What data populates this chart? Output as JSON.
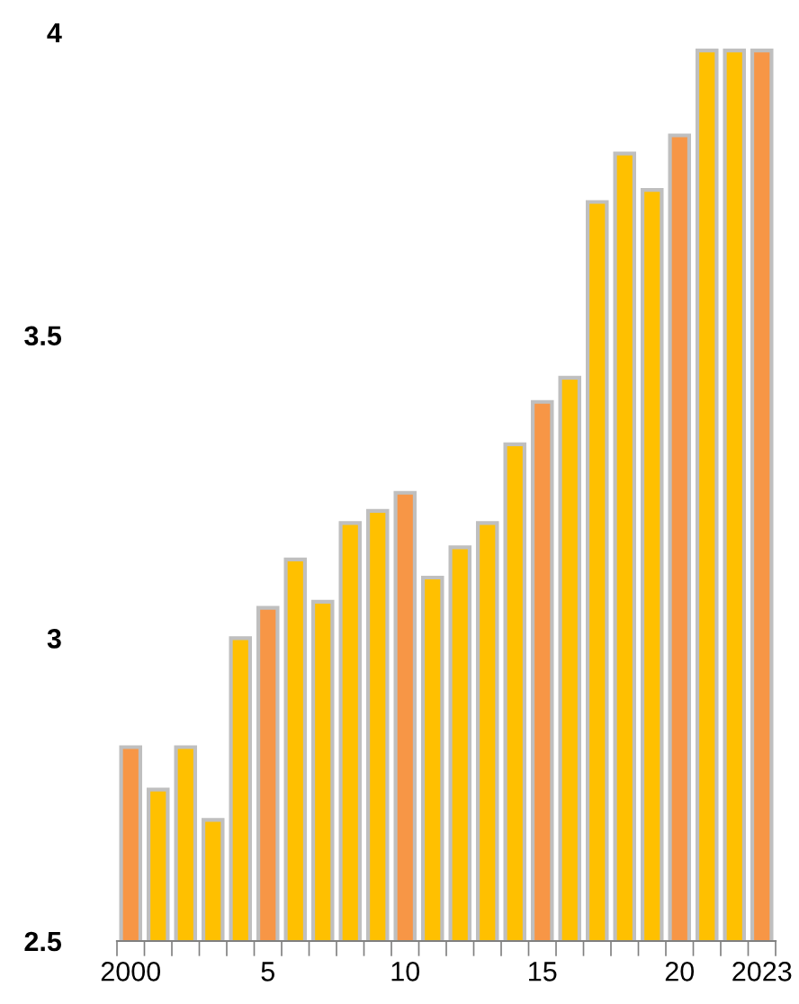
{
  "chart_data": {
    "type": "bar",
    "categories": [
      "2000",
      null,
      null,
      null,
      null,
      "5",
      null,
      null,
      null,
      null,
      "10",
      null,
      null,
      null,
      null,
      "15",
      null,
      null,
      null,
      null,
      "20",
      null,
      null,
      "2023"
    ],
    "values": [
      2.82,
      2.75,
      2.82,
      2.7,
      3.0,
      3.05,
      3.13,
      3.06,
      3.19,
      3.21,
      3.24,
      3.1,
      3.15,
      3.19,
      3.32,
      3.39,
      3.43,
      3.72,
      3.8,
      3.74,
      3.83,
      3.97,
      3.97,
      3.97
    ],
    "colors": [
      "#f79646",
      "#ffc000",
      "#ffc000",
      "#ffc000",
      "#ffc000",
      "#f79646",
      "#ffc000",
      "#ffc000",
      "#ffc000",
      "#ffc000",
      "#f79646",
      "#ffc000",
      "#ffc000",
      "#ffc000",
      "#ffc000",
      "#f79646",
      "#ffc000",
      "#ffc000",
      "#ffc000",
      "#ffc000",
      "#f79646",
      "#ffc000",
      "#ffc000",
      "#f79646"
    ],
    "ylim": [
      2.5,
      4
    ],
    "yticks": [
      2.5,
      3,
      3.5,
      4
    ],
    "grid": false
  }
}
